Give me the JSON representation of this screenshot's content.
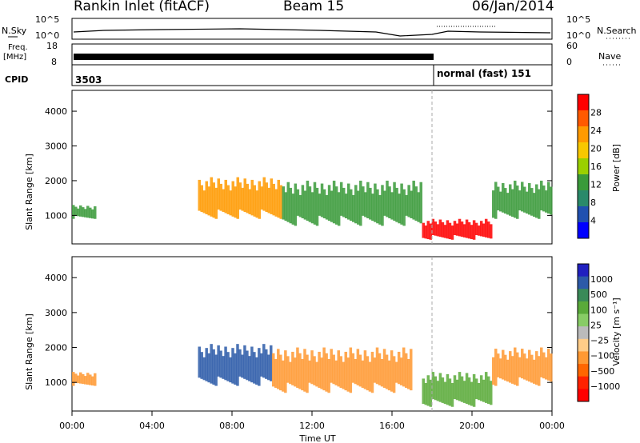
{
  "header": {
    "site": "Rankin Inlet (fitACF)",
    "beam": "Beam 15",
    "date": "06/Jan/2014"
  },
  "noise_panel": {
    "left_label": "N.Sky",
    "right_label": "N.Search",
    "left_ticks": [
      "10^5",
      "10^0"
    ],
    "right_ticks": [
      "10^5",
      "10^0"
    ]
  },
  "freq_panel": {
    "left_label_1": "Freq.",
    "left_label_2": "[MHz]",
    "right_label": "Nave",
    "left_ticks": [
      "18",
      "8"
    ],
    "right_ticks": [
      "60",
      "0"
    ]
  },
  "cpid_panel": {
    "label": "CPID",
    "segments": [
      {
        "text": "3503",
        "start_hour": 0
      },
      {
        "text": "normal (fast) 151",
        "start_hour": 18.0
      }
    ]
  },
  "time_axis": {
    "ticks": [
      "00:00",
      "04:00",
      "08:00",
      "12:00",
      "16:00",
      "20:00",
      "00:00"
    ],
    "label": "Time UT",
    "range_hours": [
      0,
      24
    ],
    "marker_hour": 18.0
  },
  "power_colorbar": {
    "label": "Power [dB]",
    "ticks": [
      "28",
      "24",
      "20",
      "16",
      "12",
      "8",
      "4"
    ],
    "colors": [
      "#ff0000",
      "#ff5a00",
      "#ff9a00",
      "#f8c800",
      "#9ad000",
      "#3a9a3a",
      "#2a8a6a",
      "#2050b0",
      "#0000ff"
    ]
  },
  "velocity_colorbar": {
    "label": "Velocity [m s⁻¹]",
    "ticks": [
      "1000",
      "500",
      "100",
      "25",
      "−25",
      "−100",
      "−500",
      "−1000"
    ],
    "colors": [
      "#2020c0",
      "#2c5aa8",
      "#3a8a58",
      "#5aaa3a",
      "#88cc66",
      "#bbbbbb",
      "#ffcc88",
      "#ff9933",
      "#ff6600",
      "#ff2200",
      "#ff0000"
    ]
  },
  "chart_data": {
    "type": "heatmap",
    "panels": [
      "power",
      "velocity"
    ],
    "ylabel": "Slant Range [km]",
    "xlabel": "Time UT",
    "yticks": [
      "1000",
      "2000",
      "3000",
      "4000"
    ],
    "ylim_km": [
      180,
      4600
    ],
    "xlim_hours": [
      0,
      24
    ],
    "power_regions": [
      {
        "t0": 0.0,
        "t1": 1.2,
        "r0": 900,
        "r1": 1300,
        "level": "medium"
      },
      {
        "t0": 6.3,
        "t1": 10.5,
        "r0": 900,
        "r1": 2100,
        "level": "high"
      },
      {
        "t0": 10.5,
        "t1": 17.5,
        "r0": 700,
        "r1": 2000,
        "level": "medium"
      },
      {
        "t0": 17.5,
        "t1": 21.0,
        "r0": 300,
        "r1": 900,
        "level": "max"
      },
      {
        "t0": 21.0,
        "t1": 24.0,
        "r0": 900,
        "r1": 2000,
        "level": "medium"
      }
    ],
    "velocity_regions": [
      {
        "t0": 0.0,
        "t1": 1.2,
        "r0": 900,
        "r1": 1300,
        "sign": "negative"
      },
      {
        "t0": 6.3,
        "t1": 10.0,
        "r0": 900,
        "r1": 2100,
        "sign": "positive"
      },
      {
        "t0": 10.0,
        "t1": 17.0,
        "r0": 700,
        "r1": 2000,
        "sign": "negative"
      },
      {
        "t0": 17.5,
        "t1": 21.0,
        "r0": 300,
        "r1": 1300,
        "sign": "positive-low"
      },
      {
        "t0": 21.0,
        "t1": 24.0,
        "r0": 900,
        "r1": 2000,
        "sign": "negative"
      }
    ]
  }
}
